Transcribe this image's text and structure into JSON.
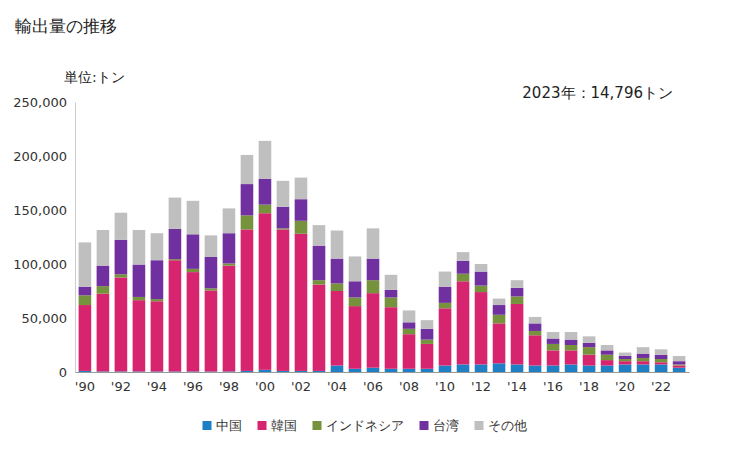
{
  "chart_data": {
    "type": "bar",
    "title": "輸出量の推移",
    "subtitle": "単位:トン",
    "annotation": "2023年：14,796トン",
    "stacked": true,
    "grid": false,
    "legend": "bottom",
    "categories": [
      "'90",
      null,
      "'92",
      null,
      "'94",
      null,
      "'96",
      null,
      "'98",
      null,
      "'00",
      null,
      "'02",
      null,
      "'04",
      null,
      "'06",
      null,
      "'08",
      null,
      "'10",
      null,
      "'12",
      null,
      "'14",
      null,
      "'16",
      null,
      "'18",
      null,
      "'20",
      null,
      "'22",
      null
    ],
    "series": [
      {
        "name": "中国",
        "color": "#1f7fc4",
        "values": [
          1000,
          500,
          500,
          500,
          500,
          500,
          500,
          500,
          500,
          1000,
          2000,
          1000,
          1000,
          1000,
          6000,
          3000,
          4000,
          3000,
          3000,
          3000,
          6000,
          7000,
          7000,
          8000,
          7000,
          6000,
          6000,
          7000,
          6000,
          6000,
          7000,
          7000,
          7000,
          4000
        ]
      },
      {
        "name": "韓国",
        "color": "#d6246e",
        "values": [
          61000,
          72000,
          87000,
          66000,
          65000,
          103000,
          92000,
          75000,
          98000,
          131000,
          145000,
          131000,
          127000,
          80000,
          69000,
          58000,
          69000,
          57000,
          32000,
          23000,
          53000,
          77000,
          67000,
          37000,
          56000,
          28000,
          14000,
          13000,
          10000,
          5000,
          3000,
          3000,
          2000,
          2000
        ]
      },
      {
        "name": "インドネシア",
        "color": "#76923c",
        "values": [
          9000,
          7000,
          3000,
          3000,
          2000,
          1000,
          3000,
          2000,
          2000,
          13000,
          8000,
          1000,
          12000,
          4000,
          7000,
          8000,
          12000,
          9000,
          5000,
          4000,
          5000,
          7000,
          6000,
          8000,
          7000,
          4000,
          6000,
          5000,
          7000,
          5000,
          2000,
          3000,
          3000,
          1000
        ]
      },
      {
        "name": "台湾",
        "color": "#7030a0",
        "values": [
          8000,
          19000,
          32000,
          30000,
          36000,
          28000,
          32000,
          29000,
          28000,
          29000,
          24000,
          20000,
          20000,
          32000,
          23000,
          15000,
          20000,
          7000,
          6000,
          10000,
          15000,
          12000,
          13000,
          9000,
          8000,
          7000,
          5000,
          5000,
          4000,
          4000,
          3000,
          4000,
          4000,
          3000
        ]
      },
      {
        "name": "その他",
        "color": "#bfbfbf",
        "values": [
          41000,
          33000,
          25000,
          32000,
          25000,
          29000,
          31000,
          20000,
          23000,
          27000,
          35000,
          24000,
          20000,
          19000,
          26000,
          23000,
          28000,
          14000,
          11000,
          8000,
          14000,
          8000,
          7000,
          6000,
          7000,
          6000,
          6000,
          7000,
          6000,
          5000,
          3000,
          6000,
          5000,
          4796
        ]
      }
    ],
    "ylim": [
      0,
      250000
    ],
    "yticks": [
      0,
      {
        "value": 50000,
        "label": "50,000"
      },
      {
        "value": 100000,
        "label": "100,000"
      },
      {
        "value": 150000,
        "label": "150,000"
      },
      {
        "value": 200000,
        "label": "200,000"
      },
      {
        "value": 250000,
        "label": "250,000"
      }
    ]
  }
}
